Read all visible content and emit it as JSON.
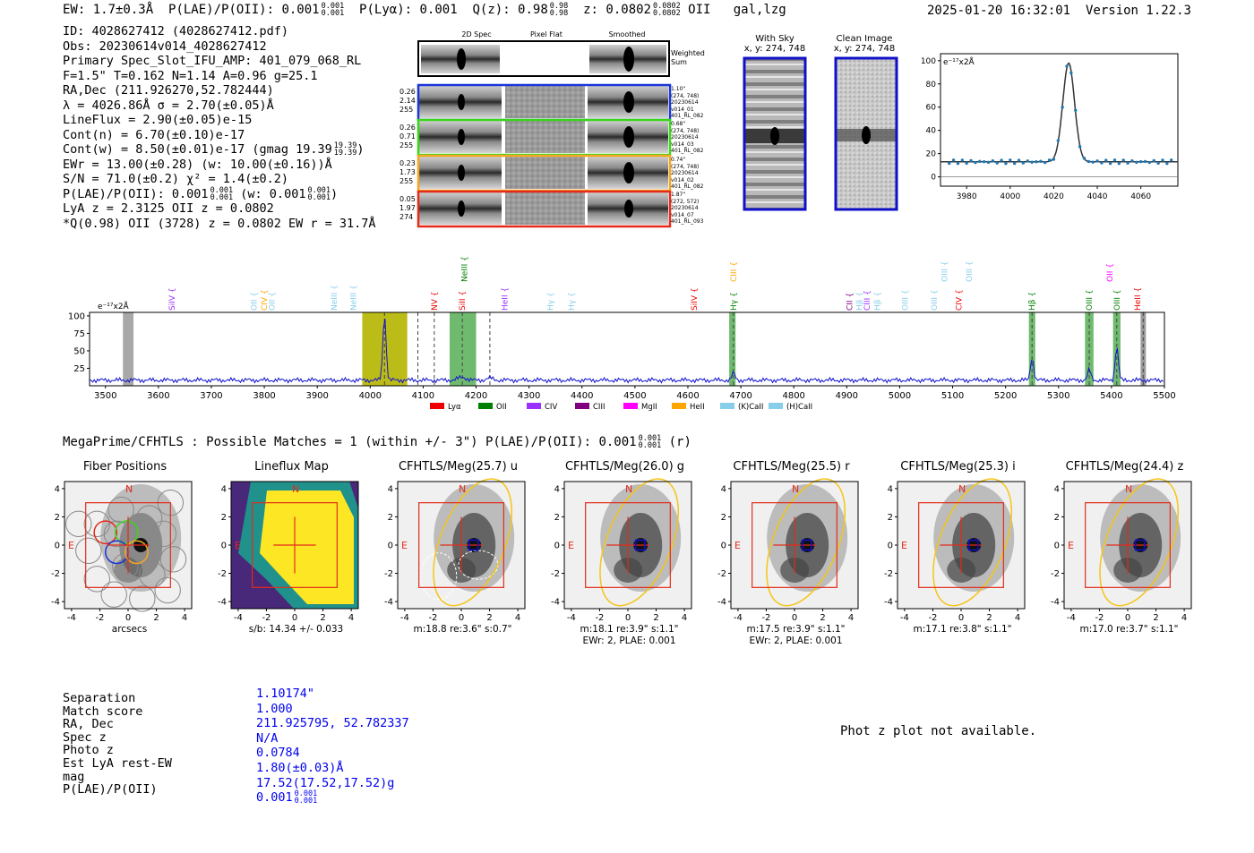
{
  "header": {
    "ew": "EW: 1.7±0.3Å",
    "plae_label": "P(LAE)/P(OII): 0.001",
    "plae_hi": "0.001",
    "plae_lo": "0.001",
    "plya": "P(Lyα): 0.001",
    "qz_label": "Q(z): 0.98",
    "qz_hi": "0.98",
    "qz_lo": "0.98",
    "z_label": "z: 0.0802",
    "z_hi": "0.0802",
    "z_lo": "0.0802",
    "line": "OII",
    "flags": "gal,lzg",
    "datetime": "2025-01-20 16:32:01",
    "version": "Version 1.22.3"
  },
  "info": {
    "id": "ID: 4028627412 (4028627412.pdf)",
    "obs": "Obs: 20230614v014_4028627412",
    "primary": "Primary Spec_Slot_IFU_AMP: 401_079_068_RL",
    "fparams": "F=1.5\"  T=0.162  N=1.14  A=0.96  g=25.1",
    "radec": "RA,Dec (211.926270,52.782444)",
    "lambda": "λ = 4026.86Å  σ = 2.70(±0.05)Å",
    "lineflux": "LineFlux = 2.90(±0.05)e-15",
    "contn": "Cont(n) = 6.70(±0.10)e-17",
    "contw_pre": "Cont(w) = 8.50(±0.01)e-17 (gmag 19.39",
    "contw_hi": "19.39",
    "contw_lo": "19.39",
    "contw_post": ")",
    "ewr": "EWr = 13.00(±0.28) (w: 10.00(±0.16))Å",
    "sn": "S/N = 71.0(±0.2)  χ² = 1.4(±0.2)",
    "plae_pre": "P(LAE)/P(OII): 0.001",
    "plae_hi": "0.001",
    "plae_lo": "0.001",
    "plae_mid": "(w: 0.001",
    "plae_w_hi": "0.001",
    "plae_w_lo": "0.001",
    "plae_post": ")",
    "lya": "LyA z = 2.3125  OII z = 0.0802",
    "q": "*Q(0.98) OII (3728) z = 0.0802  EW r = 31.7Å"
  },
  "cutouts": {
    "col_headers": [
      "2D Spec",
      "Pixel Flat",
      "Smoothed"
    ],
    "weighted": "Weighted Sum",
    "rows": [
      {
        "left": [
          "0.26",
          "2.14",
          "255"
        ],
        "right": [
          "1.10\"",
          "(274, 748)",
          "20230614",
          "v014_01",
          "401_RL_082"
        ],
        "color": "#1a35d8"
      },
      {
        "left": [
          "0.26",
          "0.71",
          "255"
        ],
        "right": [
          "0.68\"",
          "(274, 748)",
          "20230614",
          "v014_03",
          "401_RL_082"
        ],
        "color": "#39d618"
      },
      {
        "left": [
          "0.23",
          "1.73",
          "255"
        ],
        "right": [
          "0.74\"",
          "(274, 748)",
          "20230614",
          "v014_02",
          "401_RL_082"
        ],
        "color": "#f5a623"
      },
      {
        "left": [
          "0.05",
          "1.97",
          "274"
        ],
        "right": [
          "1.87\"",
          "(272, 572)",
          "20230614",
          "v014_07",
          "401_RL_093"
        ],
        "color": "#e32b1a"
      }
    ]
  },
  "sky_panels": [
    {
      "title": "With Sky",
      "coords": "x, y: 274, 748"
    },
    {
      "title": "Clean Image",
      "coords": "x, y: 274, 748"
    }
  ],
  "zoom_chart": {
    "ylabel": "e⁻¹⁷x2Å",
    "x_ticks": [
      "3980",
      "4000",
      "4020",
      "4040",
      "4060"
    ],
    "y_ticks": [
      "0",
      "20",
      "40",
      "60",
      "80",
      "100"
    ]
  },
  "spectrum": {
    "ylabel": "e⁻¹⁷x2Å",
    "x_ticks": [
      "3500",
      "3600",
      "3700",
      "3800",
      "3900",
      "4000",
      "4100",
      "4200",
      "4300",
      "4400",
      "4500",
      "4600",
      "4700",
      "4800",
      "4900",
      "5000",
      "5100",
      "5200",
      "5300",
      "5400",
      "5500"
    ],
    "y_ticks": [
      "25",
      "50",
      "75",
      "100"
    ],
    "legend": [
      {
        "label": "Lyα",
        "color": "#ee0000"
      },
      {
        "label": "OII",
        "color": "#008000"
      },
      {
        "label": "CIV",
        "color": "#9b30ff"
      },
      {
        "label": "CIII",
        "color": "#800080"
      },
      {
        "label": "MgII",
        "color": "#ff00ff"
      },
      {
        "label": "HeII",
        "color": "#ffa500"
      },
      {
        "label": "(K)CaII",
        "color": "#87ceeb"
      },
      {
        "label": "(H)CaII",
        "color": "#87ceeb"
      }
    ],
    "line_labels": [
      {
        "text": "SiIV",
        "color": "#9b30ff",
        "w": 3626,
        "row": 1
      },
      {
        "text": "OII",
        "color": "#87ceeb",
        "w": 3780,
        "row": 1
      },
      {
        "text": "CIV",
        "color": "#ffa500",
        "w": 3800,
        "row": 1
      },
      {
        "text": "OII",
        "color": "#87ceeb",
        "w": 3814,
        "row": 1
      },
      {
        "text": "NeIII",
        "color": "#87ceeb",
        "w": 3932,
        "row": 1
      },
      {
        "text": "NeIII",
        "color": "#87ceeb",
        "w": 3968,
        "row": 1
      },
      {
        "text": "NeIII",
        "color": "#008000",
        "w": 4178,
        "row": 0
      },
      {
        "text": "NV",
        "color": "#ee0000",
        "w": 4121,
        "row": 1
      },
      {
        "text": "SiII",
        "color": "#ee0000",
        "w": 4174,
        "row": 1
      },
      {
        "text": "HeII",
        "color": "#9b30ff",
        "w": 4254,
        "row": 1
      },
      {
        "text": "Hγ",
        "color": "#87ceeb",
        "w": 4340,
        "row": 1
      },
      {
        "text": "Hγ",
        "color": "#87ceeb",
        "w": 4380,
        "row": 1
      },
      {
        "text": "SiIV",
        "color": "#ee0000",
        "w": 4612,
        "row": 1
      },
      {
        "text": "CIII",
        "color": "#ffa500",
        "w": 4686,
        "row": 0
      },
      {
        "text": "Hγ",
        "color": "#008000",
        "w": 4686,
        "row": 1
      },
      {
        "text": "CII",
        "color": "#800080",
        "w": 4905,
        "row": 1
      },
      {
        "text": "Hβ",
        "color": "#87ceeb",
        "w": 4924,
        "row": 1
      },
      {
        "text": "CIII",
        "color": "#9b30ff",
        "w": 4938,
        "row": 1
      },
      {
        "text": "Hβ",
        "color": "#87ceeb",
        "w": 4958,
        "row": 1
      },
      {
        "text": "OIII",
        "color": "#87ceeb",
        "w": 5010,
        "row": 1
      },
      {
        "text": "OIII",
        "color": "#87ceeb",
        "w": 5085,
        "row": 0
      },
      {
        "text": "OIII",
        "color": "#87ceeb",
        "w": 5131,
        "row": 0
      },
      {
        "text": "OIII",
        "color": "#87ceeb",
        "w": 5065,
        "row": 1
      },
      {
        "text": "CIV",
        "color": "#ee0000",
        "w": 5112,
        "row": 1
      },
      {
        "text": "Hβ",
        "color": "#008000",
        "w": 5250,
        "row": 1
      },
      {
        "text": "OIII",
        "color": "#008000",
        "w": 5358,
        "row": 1
      },
      {
        "text": "OIII",
        "color": "#008000",
        "w": 5410,
        "row": 1
      },
      {
        "text": "HeII",
        "color": "#ee0000",
        "w": 5449,
        "row": 1
      },
      {
        "text": "OII",
        "color": "#ff00ff",
        "w": 5397,
        "row": 0
      }
    ]
  },
  "matches": {
    "title_pre": "MegaPrime/CFHTLS : Possible Matches = 1 (within +/- 3\")  P(LAE)/P(OII): 0.001",
    "title_hi": "0.001",
    "title_lo": "0.001",
    "title_post": "(r)"
  },
  "stamps": [
    {
      "title": "Fiber Positions",
      "caption1": "arcsecs",
      "caption2": ""
    },
    {
      "title": "Lineflux Map",
      "caption1": "s/b: 14.34 +/- 0.033",
      "caption2": ""
    },
    {
      "title": "CFHTLS/Meg(25.7) u",
      "caption1": "m:18.8  re:3.6\"  s:0.7\"",
      "caption2": ""
    },
    {
      "title": "CFHTLS/Meg(26.0) g",
      "caption1": "m:18.1  re:3.9\"  s:1.1\"",
      "caption2": "EWr: 2, PLAE: 0.001"
    },
    {
      "title": "CFHTLS/Meg(25.5) r",
      "caption1": "m:17.5  re:3.9\"  s:1.1\"",
      "caption2": "EWr: 2, PLAE: 0.001"
    },
    {
      "title": "CFHTLS/Meg(25.3) i",
      "caption1": "m:17.1  re:3.8\"  s:1.1\"",
      "caption2": ""
    },
    {
      "title": "CFHTLS/Meg(24.4) z",
      "caption1": "m:17.0  re:3.7\"  s:1.1\"",
      "caption2": ""
    }
  ],
  "stamp_axis": {
    "ticks": [
      "-4",
      "-2",
      "0",
      "2",
      "4"
    ],
    "n": "N",
    "e": "E"
  },
  "summary": {
    "labels": [
      "Separation",
      "Match score",
      "RA, Dec",
      "Spec z",
      "Photo z",
      "Est LyA rest-EW",
      "mag",
      "P(LAE)/P(OII)"
    ],
    "values": [
      "1.10174\"",
      "1.000",
      "211.925795, 52.782337",
      "N/A",
      "0.0784",
      "1.80(±0.03)Å",
      "17.52(17.52,17.52)g"
    ],
    "plae_val": "0.001",
    "plae_hi": "0.001",
    "plae_lo": "0.001"
  },
  "photz_note": "Phot z plot not available."
}
